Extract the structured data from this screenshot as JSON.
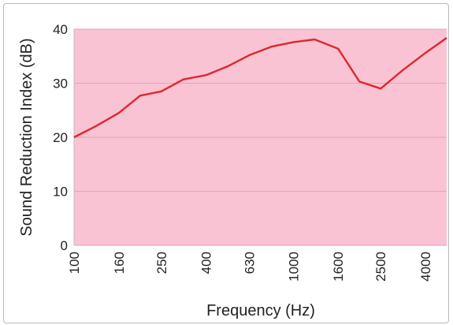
{
  "chart_data": {
    "type": "line",
    "xlabel": "Frequency (Hz)",
    "ylabel": "Sound Reduction Index (dB)",
    "ylim": [
      0,
      40
    ],
    "yticks": [
      0,
      10,
      20,
      30,
      40
    ],
    "x_scale": "log",
    "x_tick_labels": [
      "100",
      "160",
      "250",
      "400",
      "630",
      "1000",
      "1600",
      "2500",
      "4000"
    ],
    "grid": "horizontal",
    "legend": "none",
    "colors": {
      "plot_background": "#f9c3d3",
      "line": "#e0262e",
      "gridline": "#e9a2b6"
    },
    "series": [
      {
        "x": [
          100,
          125,
          160,
          200,
          250,
          315,
          400,
          500,
          630,
          800,
          1000,
          1250,
          1600,
          2000,
          2500,
          3150,
          4000,
          5000
        ],
        "values": [
          20,
          22,
          24.5,
          27.7,
          28.5,
          30.7,
          31.5,
          33.1,
          35.2,
          36.8,
          37.6,
          38.1,
          36.4,
          30.3,
          29.0,
          32.4,
          35.6,
          38.4
        ]
      }
    ]
  }
}
